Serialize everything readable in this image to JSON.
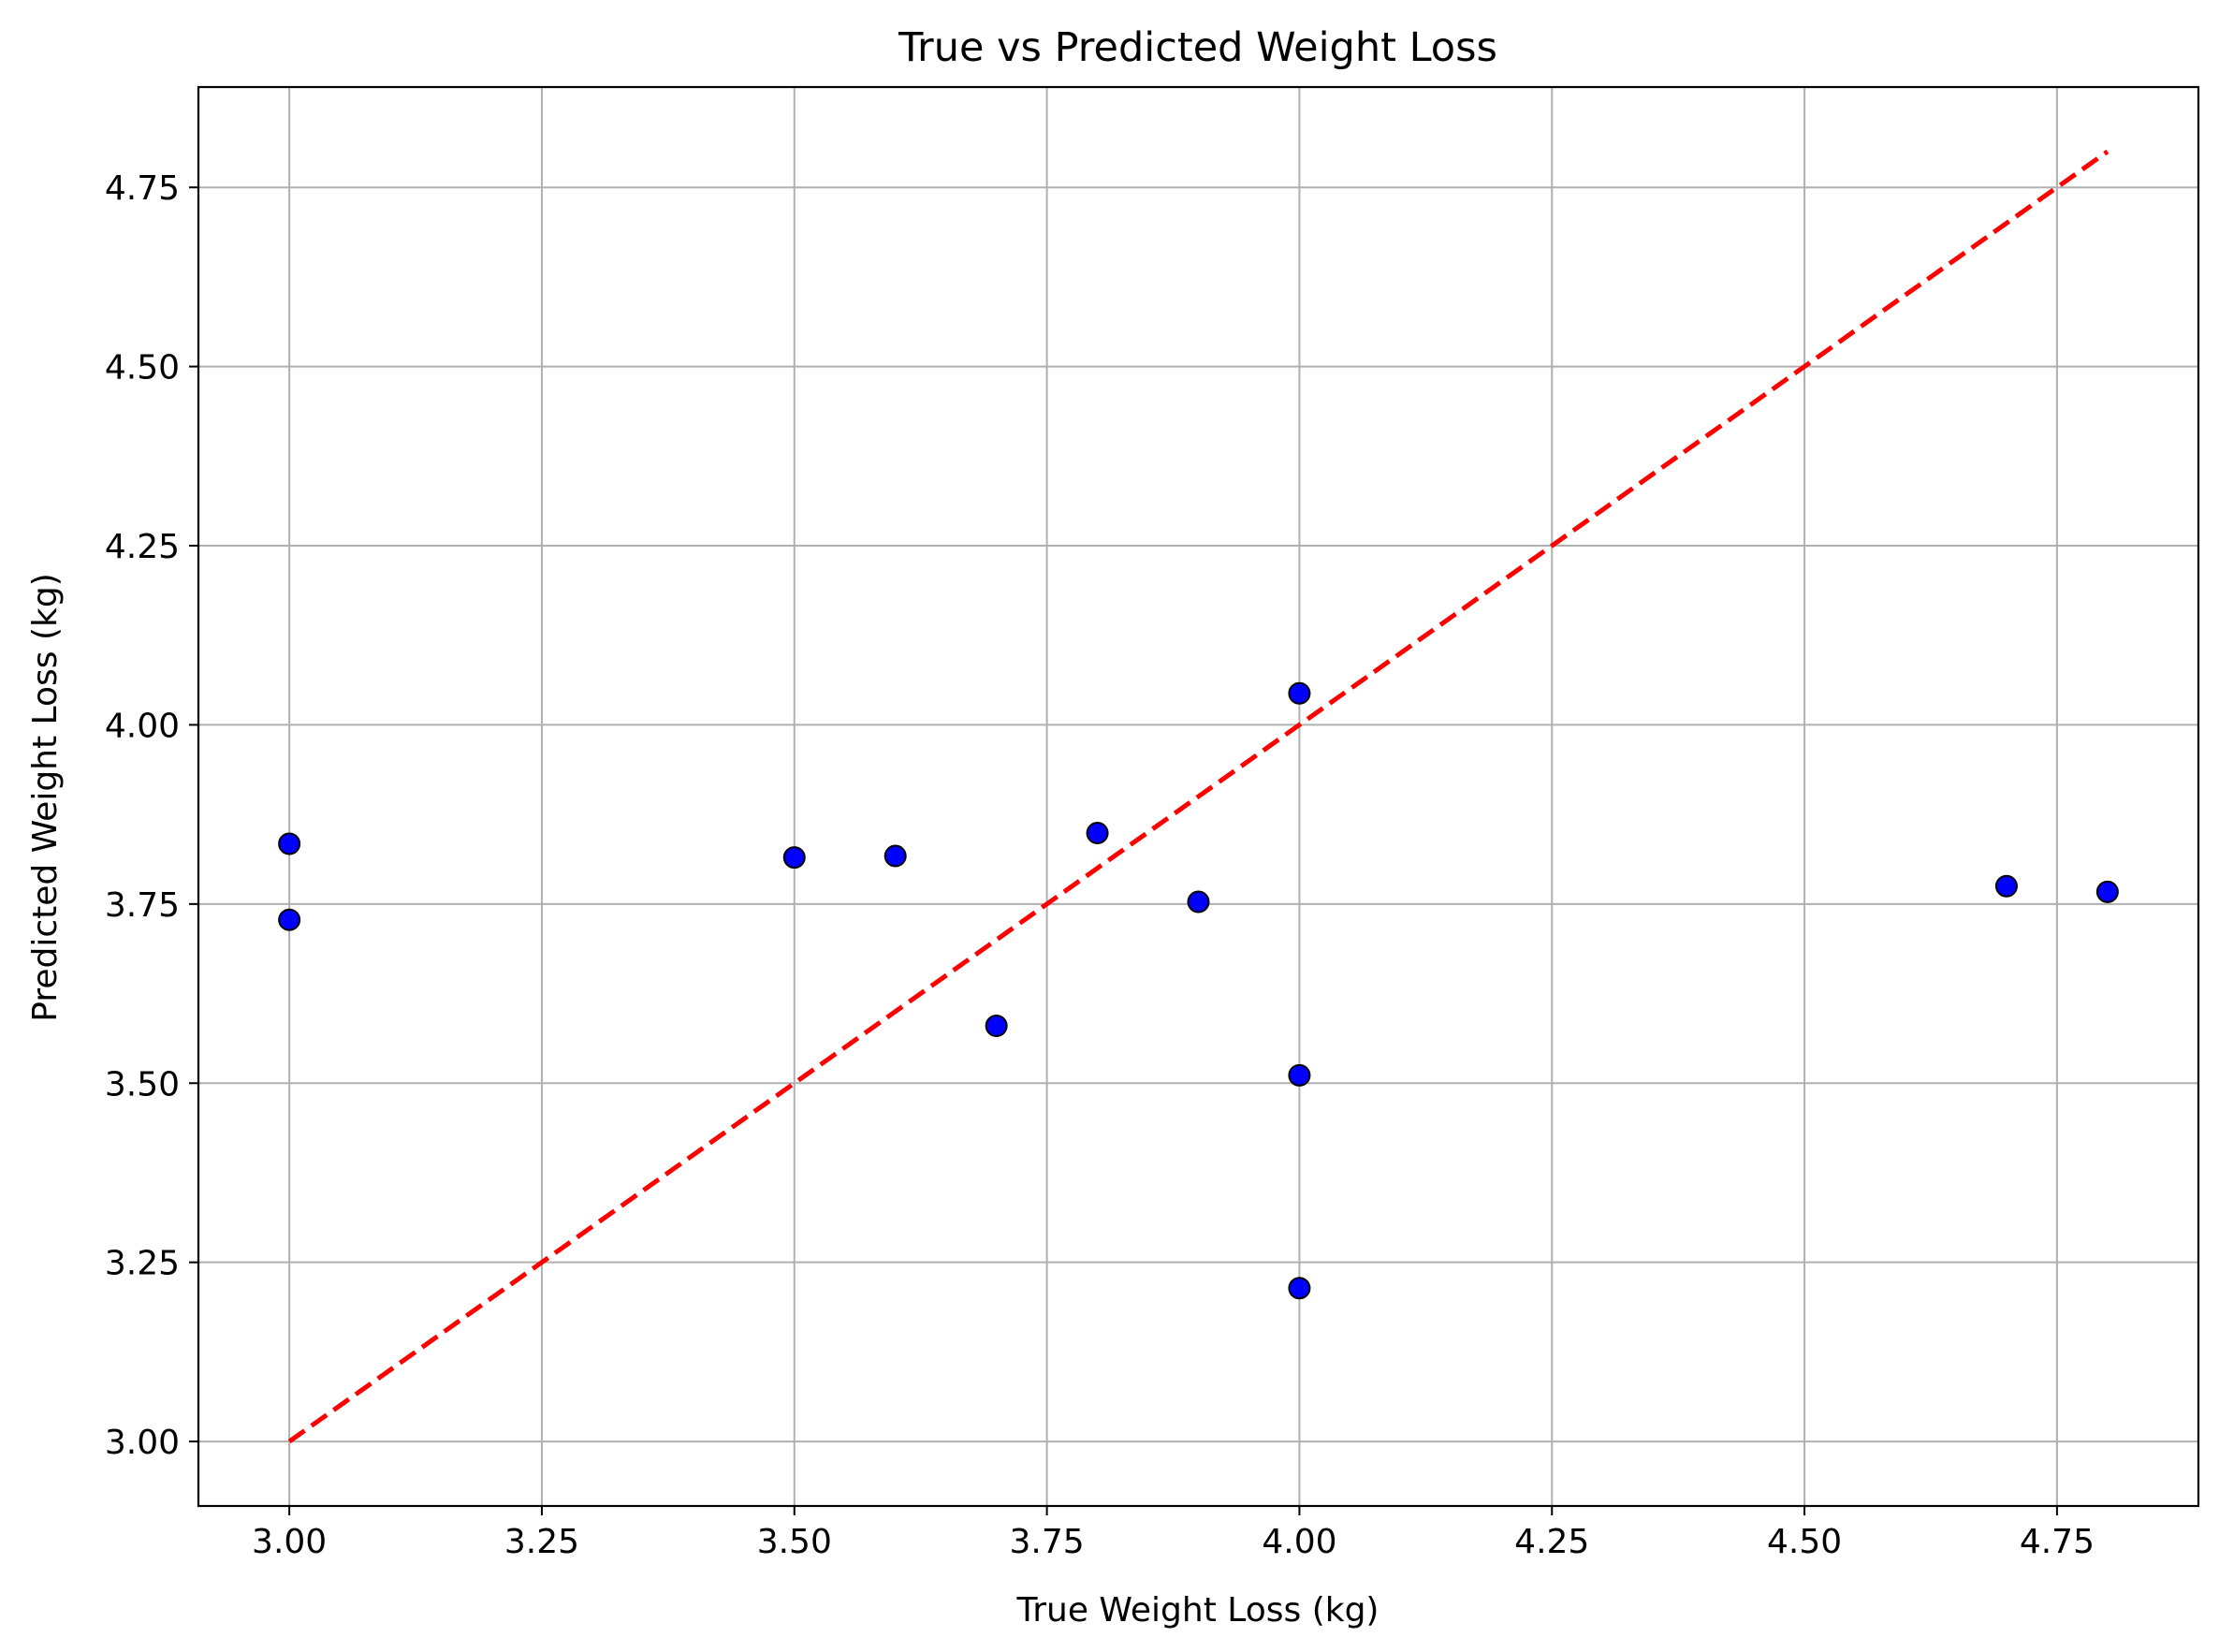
{
  "chart_data": {
    "type": "scatter",
    "title": "True vs Predicted Weight Loss",
    "xlabel": "True Weight Loss (kg)",
    "ylabel": "Predicted Weight Loss (kg)",
    "xlim": [
      2.91,
      4.89
    ],
    "ylim": [
      2.91,
      4.89
    ],
    "xticks": [
      "3.00",
      "3.25",
      "3.50",
      "3.75",
      "4.00",
      "4.25",
      "4.50",
      "4.75"
    ],
    "yticks": [
      "3.00",
      "3.25",
      "3.50",
      "3.75",
      "4.00",
      "4.25",
      "4.50",
      "4.75"
    ],
    "grid": true,
    "series": [
      {
        "type": "scatter",
        "color": "#0000ff",
        "edgecolor": "#000000",
        "points": [
          {
            "x": 3.0,
            "y": 3.834
          },
          {
            "x": 3.0,
            "y": 3.728
          },
          {
            "x": 3.5,
            "y": 3.815
          },
          {
            "x": 3.6,
            "y": 3.817
          },
          {
            "x": 3.7,
            "y": 3.58
          },
          {
            "x": 3.8,
            "y": 3.849
          },
          {
            "x": 3.9,
            "y": 3.753
          },
          {
            "x": 4.0,
            "y": 4.044
          },
          {
            "x": 4.0,
            "y": 3.511
          },
          {
            "x": 4.0,
            "y": 3.214
          },
          {
            "x": 4.7,
            "y": 3.775
          },
          {
            "x": 4.8,
            "y": 3.767
          }
        ]
      },
      {
        "type": "line",
        "style": "dashed",
        "color": "#ff0000",
        "x": [
          3.0,
          4.8
        ],
        "y": [
          3.0,
          4.8
        ]
      }
    ]
  }
}
